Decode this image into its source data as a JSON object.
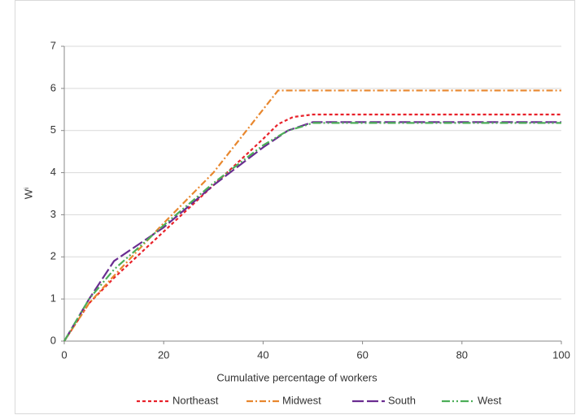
{
  "chart_data": {
    "type": "line",
    "xlabel": "Cumulative percentage of workers",
    "ylabel": "Wⁱ",
    "xlim": [
      0,
      100
    ],
    "xticks": [
      0,
      20,
      40,
      60,
      80,
      100
    ],
    "ylim": [
      0,
      7
    ],
    "yticks": [
      0,
      1,
      2,
      3,
      4,
      5,
      6,
      7
    ],
    "grid": true,
    "legend": "bottom",
    "series": [
      {
        "name": "Northeast",
        "color": "#e8212a",
        "dash": "4,3",
        "x": [
          0,
          5,
          10,
          20,
          30,
          40,
          43,
          46,
          50,
          100
        ],
        "values": [
          0,
          0.9,
          1.5,
          2.6,
          3.7,
          4.8,
          5.15,
          5.32,
          5.38,
          5.38
        ]
      },
      {
        "name": "Midwest",
        "color": "#e8872e",
        "dash": "8,3,2,3",
        "x": [
          0,
          5,
          10,
          20,
          30,
          40,
          43,
          100
        ],
        "values": [
          0,
          0.9,
          1.55,
          2.8,
          4.0,
          5.5,
          5.95,
          5.95
        ]
      },
      {
        "name": "South",
        "color": "#6a2c91",
        "dash": "14,4",
        "x": [
          0,
          5,
          10,
          20,
          30,
          40,
          45,
          50,
          100
        ],
        "values": [
          0,
          1.0,
          1.9,
          2.7,
          3.7,
          4.6,
          5.0,
          5.2,
          5.2
        ]
      },
      {
        "name": "West",
        "color": "#4cae58",
        "dash": "10,3,2,3,2,3",
        "x": [
          0,
          5,
          10,
          20,
          30,
          40,
          45,
          48,
          50,
          100
        ],
        "values": [
          0,
          1.0,
          1.7,
          2.75,
          3.75,
          4.65,
          5.0,
          5.1,
          5.18,
          5.18
        ]
      }
    ]
  }
}
